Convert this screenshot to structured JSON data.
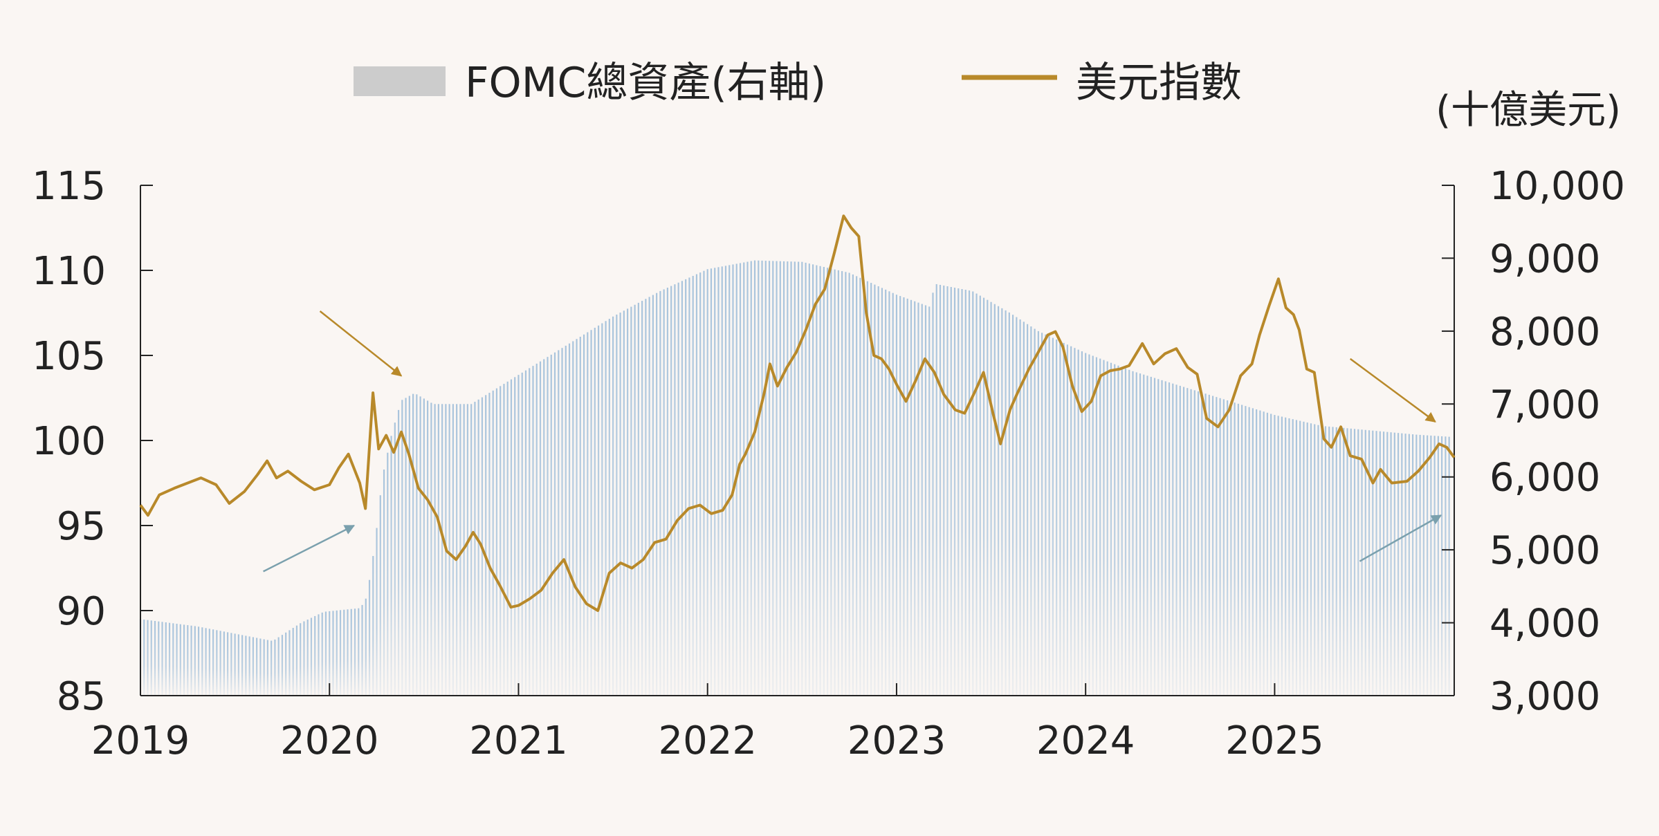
{
  "legend": {
    "bars_label": "FOMC總資產(右軸)",
    "line_label": "美元指數"
  },
  "right_axis_unit": "(十億美元)",
  "colors": {
    "background": "#faf6f3",
    "bars": "#a9c4dc",
    "legend_bar": "#cccccc",
    "line": "#b8892a",
    "arrow_gold": "#b8892a",
    "arrow_blue": "#7aa0ad",
    "axis": "#222222",
    "text": "#222222"
  },
  "chart_data": {
    "type": "bar+line",
    "x_range": [
      2019.0,
      2025.95
    ],
    "x_ticks": [
      "2019",
      "2020",
      "2021",
      "2022",
      "2023",
      "2024",
      "2025"
    ],
    "left_axis": {
      "range": [
        85,
        115
      ],
      "ticks": [
        "115",
        "110",
        "105",
        "100",
        "95",
        "90",
        "85"
      ]
    },
    "right_axis": {
      "range": [
        3000,
        10000
      ],
      "ticks": [
        "10,000",
        "9,000",
        "8,000",
        "7,000",
        "6,000",
        "5,000",
        "4,000",
        "3,000"
      ]
    },
    "series": [
      {
        "name": "FOMC總資產(右軸)",
        "type": "bar",
        "axis": "right",
        "points": [
          [
            2019.0,
            4050
          ],
          [
            2019.3,
            3950
          ],
          [
            2019.6,
            3800
          ],
          [
            2019.7,
            3750
          ],
          [
            2019.85,
            4000
          ],
          [
            2019.97,
            4150
          ],
          [
            2020.16,
            4200
          ],
          [
            2020.19,
            4300
          ],
          [
            2020.22,
            4700
          ],
          [
            2020.25,
            5300
          ],
          [
            2020.28,
            6000
          ],
          [
            2020.33,
            6600
          ],
          [
            2020.38,
            7050
          ],
          [
            2020.45,
            7150
          ],
          [
            2020.55,
            7000
          ],
          [
            2020.75,
            7000
          ],
          [
            2021.0,
            7400
          ],
          [
            2021.25,
            7800
          ],
          [
            2021.5,
            8200
          ],
          [
            2021.75,
            8550
          ],
          [
            2022.0,
            8850
          ],
          [
            2022.25,
            8970
          ],
          [
            2022.5,
            8950
          ],
          [
            2022.75,
            8800
          ],
          [
            2023.0,
            8500
          ],
          [
            2023.18,
            8330
          ],
          [
            2023.2,
            8650
          ],
          [
            2023.4,
            8550
          ],
          [
            2023.6,
            8250
          ],
          [
            2023.75,
            8000
          ],
          [
            2024.0,
            7700
          ],
          [
            2024.25,
            7450
          ],
          [
            2024.5,
            7250
          ],
          [
            2024.75,
            7050
          ],
          [
            2025.0,
            6850
          ],
          [
            2025.25,
            6700
          ],
          [
            2025.5,
            6640
          ],
          [
            2025.75,
            6580
          ],
          [
            2025.93,
            6550
          ]
        ]
      },
      {
        "name": "美元指數",
        "type": "line",
        "axis": "left",
        "points": [
          [
            2019.0,
            96.2
          ],
          [
            2019.04,
            95.6
          ],
          [
            2019.1,
            96.8
          ],
          [
            2019.18,
            97.2
          ],
          [
            2019.25,
            97.5
          ],
          [
            2019.32,
            97.8
          ],
          [
            2019.4,
            97.4
          ],
          [
            2019.47,
            96.3
          ],
          [
            2019.55,
            97.0
          ],
          [
            2019.62,
            98.0
          ],
          [
            2019.67,
            98.8
          ],
          [
            2019.72,
            97.8
          ],
          [
            2019.78,
            98.2
          ],
          [
            2019.85,
            97.6
          ],
          [
            2019.92,
            97.1
          ],
          [
            2020.0,
            97.4
          ],
          [
            2020.05,
            98.4
          ],
          [
            2020.1,
            99.2
          ],
          [
            2020.16,
            97.5
          ],
          [
            2020.19,
            96.0
          ],
          [
            2020.23,
            102.8
          ],
          [
            2020.26,
            99.5
          ],
          [
            2020.3,
            100.3
          ],
          [
            2020.34,
            99.3
          ],
          [
            2020.38,
            100.5
          ],
          [
            2020.42,
            99.2
          ],
          [
            2020.47,
            97.2
          ],
          [
            2020.52,
            96.5
          ],
          [
            2020.57,
            95.5
          ],
          [
            2020.62,
            93.5
          ],
          [
            2020.67,
            93.0
          ],
          [
            2020.72,
            93.8
          ],
          [
            2020.76,
            94.6
          ],
          [
            2020.8,
            93.9
          ],
          [
            2020.85,
            92.5
          ],
          [
            2020.9,
            91.5
          ],
          [
            2020.96,
            90.2
          ],
          [
            2021.0,
            90.3
          ],
          [
            2021.06,
            90.7
          ],
          [
            2021.12,
            91.2
          ],
          [
            2021.18,
            92.2
          ],
          [
            2021.24,
            93.0
          ],
          [
            2021.3,
            91.4
          ],
          [
            2021.36,
            90.4
          ],
          [
            2021.42,
            90.0
          ],
          [
            2021.48,
            92.2
          ],
          [
            2021.54,
            92.8
          ],
          [
            2021.6,
            92.5
          ],
          [
            2021.66,
            93.0
          ],
          [
            2021.72,
            94.0
          ],
          [
            2021.78,
            94.2
          ],
          [
            2021.84,
            95.3
          ],
          [
            2021.9,
            96.0
          ],
          [
            2021.96,
            96.2
          ],
          [
            2022.02,
            95.7
          ],
          [
            2022.08,
            95.9
          ],
          [
            2022.13,
            96.8
          ],
          [
            2022.17,
            98.6
          ],
          [
            2022.2,
            99.2
          ],
          [
            2022.25,
            100.5
          ],
          [
            2022.3,
            102.8
          ],
          [
            2022.33,
            104.5
          ],
          [
            2022.37,
            103.2
          ],
          [
            2022.42,
            104.3
          ],
          [
            2022.47,
            105.2
          ],
          [
            2022.52,
            106.5
          ],
          [
            2022.57,
            108.0
          ],
          [
            2022.62,
            108.9
          ],
          [
            2022.67,
            111.0
          ],
          [
            2022.72,
            113.2
          ],
          [
            2022.76,
            112.5
          ],
          [
            2022.8,
            112.0
          ],
          [
            2022.84,
            107.5
          ],
          [
            2022.88,
            105.0
          ],
          [
            2022.92,
            104.8
          ],
          [
            2022.96,
            104.2
          ],
          [
            2023.0,
            103.3
          ],
          [
            2023.05,
            102.3
          ],
          [
            2023.1,
            103.5
          ],
          [
            2023.15,
            104.8
          ],
          [
            2023.2,
            104.0
          ],
          [
            2023.25,
            102.7
          ],
          [
            2023.31,
            101.8
          ],
          [
            2023.36,
            101.6
          ],
          [
            2023.42,
            103.0
          ],
          [
            2023.46,
            104.0
          ],
          [
            2023.51,
            101.6
          ],
          [
            2023.55,
            99.8
          ],
          [
            2023.6,
            101.8
          ],
          [
            2023.64,
            102.8
          ],
          [
            2023.7,
            104.2
          ],
          [
            2023.75,
            105.2
          ],
          [
            2023.8,
            106.2
          ],
          [
            2023.84,
            106.4
          ],
          [
            2023.88,
            105.5
          ],
          [
            2023.93,
            103.2
          ],
          [
            2023.98,
            101.7
          ],
          [
            2024.03,
            102.3
          ],
          [
            2024.08,
            103.8
          ],
          [
            2024.13,
            104.1
          ],
          [
            2024.18,
            104.2
          ],
          [
            2024.23,
            104.4
          ],
          [
            2024.3,
            105.7
          ],
          [
            2024.36,
            104.5
          ],
          [
            2024.42,
            105.1
          ],
          [
            2024.48,
            105.4
          ],
          [
            2024.54,
            104.3
          ],
          [
            2024.59,
            103.9
          ],
          [
            2024.64,
            101.3
          ],
          [
            2024.7,
            100.8
          ],
          [
            2024.76,
            101.8
          ],
          [
            2024.82,
            103.8
          ],
          [
            2024.88,
            104.5
          ],
          [
            2024.92,
            106.2
          ],
          [
            2024.97,
            107.9
          ],
          [
            2025.02,
            109.5
          ],
          [
            2025.06,
            107.8
          ],
          [
            2025.1,
            107.4
          ],
          [
            2025.13,
            106.5
          ],
          [
            2025.17,
            104.2
          ],
          [
            2025.21,
            104.0
          ],
          [
            2025.26,
            100.1
          ],
          [
            2025.3,
            99.6
          ],
          [
            2025.35,
            100.8
          ],
          [
            2025.4,
            99.1
          ],
          [
            2025.46,
            98.9
          ],
          [
            2025.52,
            97.5
          ],
          [
            2025.56,
            98.3
          ],
          [
            2025.62,
            97.5
          ],
          [
            2025.7,
            97.6
          ],
          [
            2025.76,
            98.2
          ],
          [
            2025.82,
            99.0
          ],
          [
            2025.87,
            99.8
          ],
          [
            2025.91,
            99.6
          ],
          [
            2025.95,
            99.0
          ]
        ]
      }
    ],
    "annotations": [
      {
        "color": "gold",
        "from": [
          2019.95,
          107.6
        ],
        "to": [
          2020.38,
          103.8
        ]
      },
      {
        "color": "blue",
        "from": [
          2019.65,
          92.3
        ],
        "to": [
          2020.13,
          95.0
        ]
      },
      {
        "color": "gold",
        "from": [
          2025.4,
          104.8
        ],
        "to": [
          2025.85,
          101.1
        ]
      },
      {
        "color": "blue",
        "from": [
          2025.45,
          92.9
        ],
        "to": [
          2025.88,
          95.6
        ]
      }
    ]
  }
}
